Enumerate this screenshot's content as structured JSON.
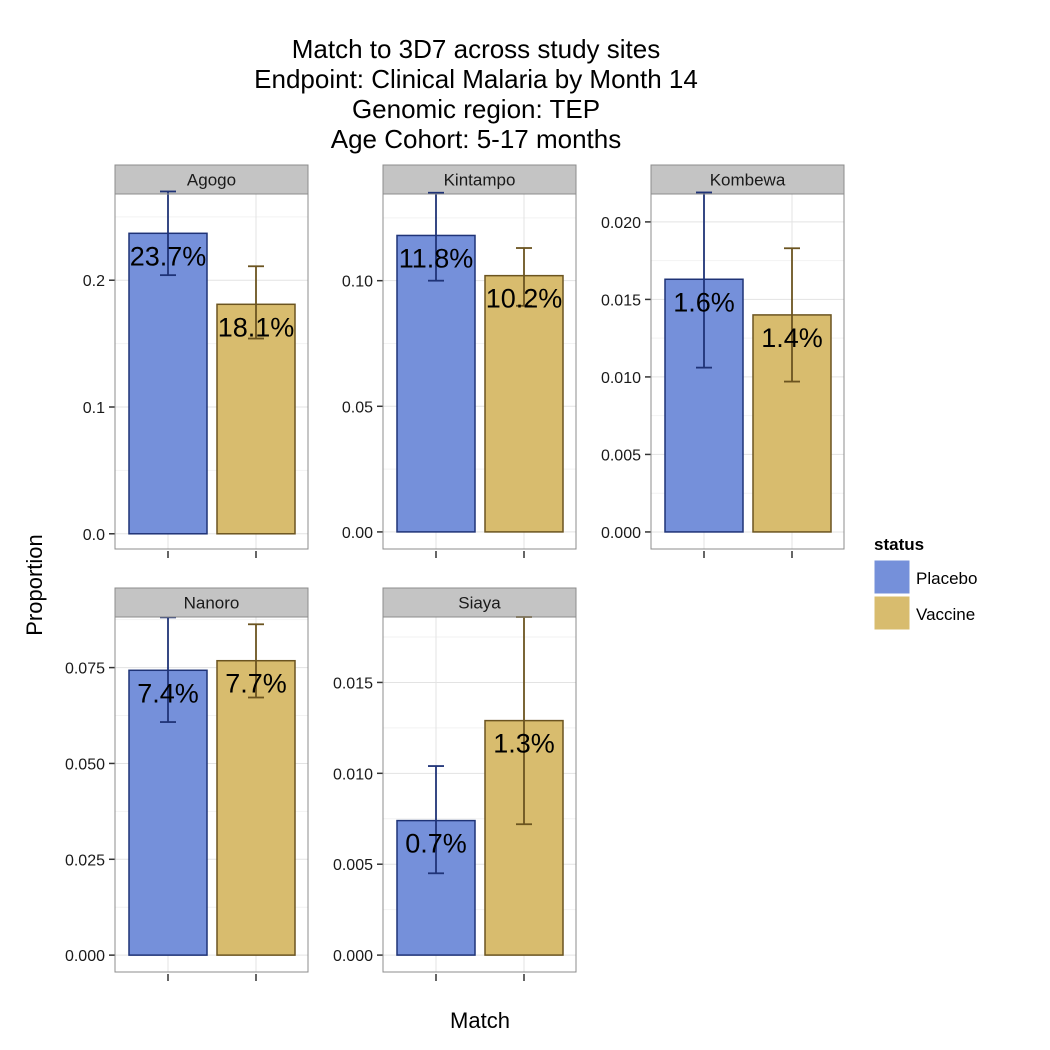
{
  "chart_data": {
    "type": "bar",
    "title_lines": [
      "Match to 3D7 across study sites",
      "Endpoint: Clinical Malaria by Month 14",
      "Genomic region: TEP",
      "Age Cohort: 5-17 months"
    ],
    "xlabel": "Match",
    "ylabel": "Proportion",
    "grid": true,
    "legend": {
      "title": "status",
      "position": "right",
      "entries": [
        {
          "name": "Placebo",
          "fill": "#7590da",
          "stroke": "#1f3377"
        },
        {
          "name": "Vaccine",
          "fill": "#d8bc6e",
          "stroke": "#6b5420"
        }
      ]
    },
    "panels": [
      {
        "site": "Agogo",
        "ylim": [
          -0.012,
          0.268
        ],
        "yticks": [
          0.0,
          0.1,
          0.2
        ],
        "ytick_labels": [
          "0.0",
          "0.1",
          "0.2"
        ],
        "bars": [
          {
            "status": "Placebo",
            "value": 0.237,
            "err_low": 0.204,
            "err_high": 0.27,
            "label": "23.7%"
          },
          {
            "status": "Vaccine",
            "value": 0.181,
            "err_low": 0.154,
            "err_high": 0.211,
            "label": "18.1%"
          }
        ]
      },
      {
        "site": "Kintampo",
        "ylim": [
          -0.0068,
          0.1345
        ],
        "yticks": [
          0.0,
          0.05,
          0.1
        ],
        "ytick_labels": [
          "0.00",
          "0.05",
          "0.10"
        ],
        "bars": [
          {
            "status": "Placebo",
            "value": 0.118,
            "err_low": 0.1,
            "err_high": 0.135,
            "label": "11.8%"
          },
          {
            "status": "Vaccine",
            "value": 0.102,
            "err_low": 0.09,
            "err_high": 0.113,
            "label": "10.2%"
          }
        ]
      },
      {
        "site": "Kombewa",
        "ylim": [
          -0.0011,
          0.0218
        ],
        "yticks": [
          0.0,
          0.005,
          0.01,
          0.015,
          0.02
        ],
        "ytick_labels": [
          "0.000",
          "0.005",
          "0.010",
          "0.015",
          "0.020"
        ],
        "bars": [
          {
            "status": "Placebo",
            "value": 0.0163,
            "err_low": 0.0106,
            "err_high": 0.0219,
            "label": "1.6%"
          },
          {
            "status": "Vaccine",
            "value": 0.014,
            "err_low": 0.0097,
            "err_high": 0.0183,
            "label": "1.4%"
          }
        ]
      },
      {
        "site": "Nanoro",
        "ylim": [
          -0.0044,
          0.0882
        ],
        "yticks": [
          0.0,
          0.025,
          0.05,
          0.075
        ],
        "ytick_labels": [
          "0.000",
          "0.025",
          "0.050",
          "0.075"
        ],
        "bars": [
          {
            "status": "Placebo",
            "value": 0.0743,
            "err_low": 0.0608,
            "err_high": 0.0881,
            "label": "7.4%"
          },
          {
            "status": "Vaccine",
            "value": 0.0768,
            "err_low": 0.0672,
            "err_high": 0.0863,
            "label": "7.7%"
          }
        ]
      },
      {
        "site": "Siaya",
        "ylim": [
          -0.00093,
          0.0186
        ],
        "yticks": [
          0.0,
          0.005,
          0.01,
          0.015
        ],
        "ytick_labels": [
          "0.000",
          "0.005",
          "0.010",
          "0.015"
        ],
        "bars": [
          {
            "status": "Placebo",
            "value": 0.0074,
            "err_low": 0.0045,
            "err_high": 0.0104,
            "label": "0.7%"
          },
          {
            "status": "Vaccine",
            "value": 0.0129,
            "err_low": 0.0072,
            "err_high": 0.0186,
            "label": "1.3%"
          }
        ]
      }
    ]
  }
}
